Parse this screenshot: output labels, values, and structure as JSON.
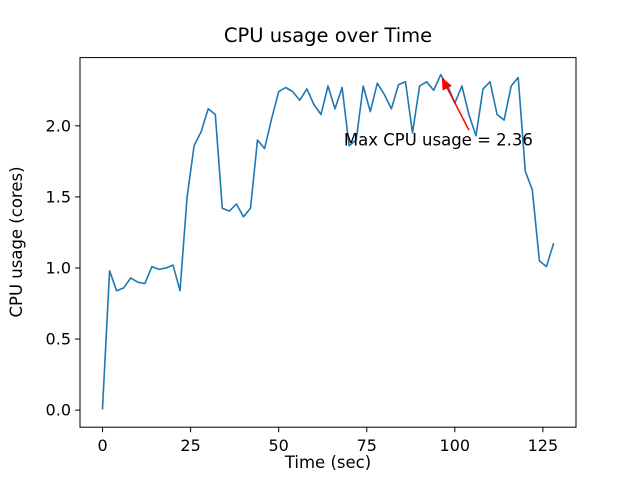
{
  "chart_data": {
    "type": "line",
    "title": "CPU usage over Time",
    "xlabel": "Time (sec)",
    "ylabel": "CPU usage (cores)",
    "series_name": "CPU usage",
    "series_color": "#1f77b4",
    "grid": false,
    "xlim": [
      -6.4,
      134.4
    ],
    "ylim": [
      -0.12,
      2.48
    ],
    "xticks": {
      "values": [
        0,
        25,
        50,
        75,
        100,
        125
      ],
      "labels": [
        "0",
        "25",
        "50",
        "75",
        "100",
        "125"
      ]
    },
    "yticks": {
      "values": [
        0.0,
        0.5,
        1.0,
        1.5,
        2.0
      ],
      "labels": [
        "0.0",
        "0.5",
        "1.0",
        "1.5",
        "2.0"
      ]
    },
    "x": [
      0,
      2,
      4,
      6,
      8,
      10,
      12,
      14,
      16,
      18,
      20,
      22,
      24,
      26,
      28,
      30,
      32,
      34,
      36,
      38,
      40,
      42,
      44,
      46,
      48,
      50,
      52,
      54,
      56,
      58,
      60,
      62,
      64,
      66,
      68,
      70,
      72,
      74,
      76,
      78,
      80,
      82,
      84,
      86,
      88,
      90,
      92,
      94,
      96,
      98,
      100,
      102,
      104,
      106,
      108,
      110,
      112,
      114,
      116,
      118,
      120,
      122,
      124,
      126,
      128
    ],
    "y": [
      0.01,
      0.98,
      0.84,
      0.86,
      0.93,
      0.9,
      0.89,
      1.01,
      0.99,
      1.0,
      1.02,
      0.84,
      1.5,
      1.86,
      1.96,
      2.12,
      2.08,
      1.42,
      1.4,
      1.45,
      1.36,
      1.42,
      1.9,
      1.84,
      2.05,
      2.24,
      2.27,
      2.24,
      2.18,
      2.26,
      2.15,
      2.08,
      2.28,
      2.12,
      2.27,
      1.86,
      1.9,
      2.28,
      2.1,
      2.3,
      2.22,
      2.12,
      2.29,
      2.31,
      1.95,
      2.28,
      2.31,
      2.25,
      2.36,
      2.28,
      2.16,
      2.28,
      2.08,
      1.93,
      2.26,
      2.31,
      2.08,
      2.04,
      2.28,
      2.34,
      1.68,
      1.55,
      1.05,
      1.01,
      1.17
    ],
    "max_point": {
      "x": 96,
      "y": 2.36
    },
    "annotation": {
      "text": "Max CPU usage = 2.36",
      "color": "#ff0000",
      "point": [
        96.5,
        2.33
      ],
      "tail": [
        104.0,
        1.97
      ],
      "text_pos": [
        68.5,
        1.86
      ]
    }
  }
}
